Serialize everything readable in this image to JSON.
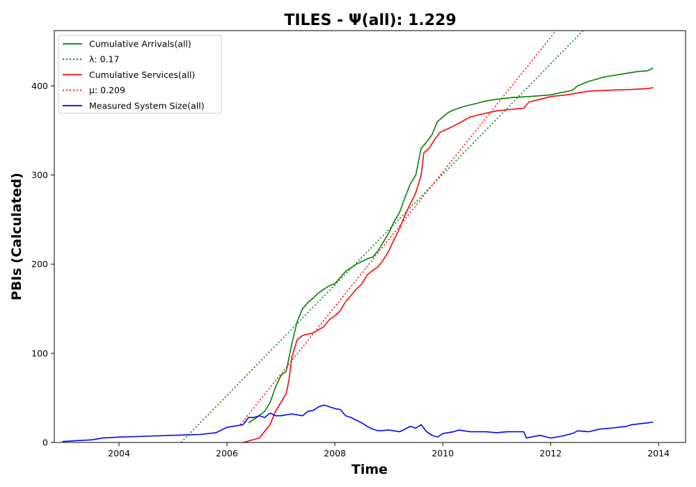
{
  "chart_data": {
    "type": "line",
    "title": "TILES -  Ψ(all): 1.229",
    "xlabel": "Time",
    "ylabel": "PBIs (Calculated)",
    "xlim": [
      2002.8,
      2014.5
    ],
    "ylim": [
      0,
      462
    ],
    "x_ticks": [
      2004,
      2006,
      2008,
      2010,
      2012,
      2014
    ],
    "y_ticks": [
      0,
      100,
      200,
      300,
      400
    ],
    "grid": false,
    "legend_position": "top-left",
    "series": [
      {
        "name": "Cumulative Arrivals(all)",
        "color": "#008000",
        "style": "solid",
        "points": [
          [
            2006.4,
            22
          ],
          [
            2006.55,
            28
          ],
          [
            2006.7,
            35
          ],
          [
            2006.8,
            45
          ],
          [
            2006.9,
            62
          ],
          [
            2007.0,
            75
          ],
          [
            2007.1,
            80
          ],
          [
            2007.2,
            110
          ],
          [
            2007.3,
            135
          ],
          [
            2007.4,
            150
          ],
          [
            2007.5,
            157
          ],
          [
            2007.6,
            162
          ],
          [
            2007.7,
            168
          ],
          [
            2007.8,
            172
          ],
          [
            2007.9,
            176
          ],
          [
            2008.0,
            178
          ],
          [
            2008.1,
            185
          ],
          [
            2008.2,
            192
          ],
          [
            2008.3,
            196
          ],
          [
            2008.4,
            200
          ],
          [
            2008.5,
            203
          ],
          [
            2008.6,
            206
          ],
          [
            2008.7,
            208
          ],
          [
            2008.8,
            215
          ],
          [
            2008.9,
            225
          ],
          [
            2009.0,
            235
          ],
          [
            2009.1,
            248
          ],
          [
            2009.2,
            258
          ],
          [
            2009.3,
            275
          ],
          [
            2009.4,
            290
          ],
          [
            2009.5,
            300
          ],
          [
            2009.6,
            330
          ],
          [
            2009.7,
            337
          ],
          [
            2009.8,
            345
          ],
          [
            2009.9,
            360
          ],
          [
            2010.0,
            365
          ],
          [
            2010.1,
            370
          ],
          [
            2010.2,
            373
          ],
          [
            2010.4,
            377
          ],
          [
            2010.6,
            380
          ],
          [
            2010.8,
            383
          ],
          [
            2011.0,
            385
          ],
          [
            2011.3,
            387
          ],
          [
            2011.6,
            388
          ],
          [
            2012.0,
            390
          ],
          [
            2012.4,
            395
          ],
          [
            2012.5,
            400
          ],
          [
            2012.7,
            405
          ],
          [
            2013.0,
            410
          ],
          [
            2013.3,
            413
          ],
          [
            2013.6,
            416
          ],
          [
            2013.8,
            417
          ],
          [
            2013.9,
            420
          ]
        ]
      },
      {
        "name": "λ: 0.17",
        "color": "#008000",
        "style": "dotted",
        "points": [
          [
            2005.15,
            0
          ],
          [
            2012.6,
            462
          ]
        ]
      },
      {
        "name": "Cumulative Services(all)",
        "color": "#ff0000",
        "style": "solid",
        "points": [
          [
            2006.3,
            0
          ],
          [
            2006.6,
            5
          ],
          [
            2006.8,
            20
          ],
          [
            2006.9,
            35
          ],
          [
            2007.0,
            45
          ],
          [
            2007.1,
            55
          ],
          [
            2007.15,
            70
          ],
          [
            2007.2,
            95
          ],
          [
            2007.3,
            115
          ],
          [
            2007.4,
            120
          ],
          [
            2007.6,
            123
          ],
          [
            2007.8,
            130
          ],
          [
            2007.9,
            138
          ],
          [
            2008.0,
            142
          ],
          [
            2008.1,
            148
          ],
          [
            2008.2,
            158
          ],
          [
            2008.3,
            165
          ],
          [
            2008.4,
            172
          ],
          [
            2008.5,
            178
          ],
          [
            2008.6,
            188
          ],
          [
            2008.7,
            193
          ],
          [
            2008.8,
            197
          ],
          [
            2008.9,
            205
          ],
          [
            2009.0,
            215
          ],
          [
            2009.1,
            228
          ],
          [
            2009.2,
            240
          ],
          [
            2009.3,
            255
          ],
          [
            2009.4,
            268
          ],
          [
            2009.5,
            280
          ],
          [
            2009.6,
            300
          ],
          [
            2009.65,
            325
          ],
          [
            2009.75,
            330
          ],
          [
            2009.85,
            340
          ],
          [
            2009.95,
            348
          ],
          [
            2010.1,
            352
          ],
          [
            2010.3,
            358
          ],
          [
            2010.5,
            365
          ],
          [
            2010.7,
            368
          ],
          [
            2011.0,
            372
          ],
          [
            2011.5,
            375
          ],
          [
            2011.6,
            382
          ],
          [
            2011.8,
            385
          ],
          [
            2012.0,
            388
          ],
          [
            2012.3,
            390
          ],
          [
            2012.5,
            392
          ],
          [
            2012.7,
            394
          ],
          [
            2013.0,
            395
          ],
          [
            2013.5,
            396
          ],
          [
            2013.8,
            397
          ],
          [
            2013.9,
            398
          ]
        ]
      },
      {
        "name": "μ: 0.209",
        "color": "#ff0000",
        "style": "dotted",
        "points": [
          [
            2006.25,
            20
          ],
          [
            2012.1,
            462
          ]
        ]
      },
      {
        "name": "Measured System Size(all)",
        "color": "#0000ff",
        "style": "solid",
        "points": [
          [
            2002.95,
            1
          ],
          [
            2003.2,
            2
          ],
          [
            2003.5,
            3
          ],
          [
            2003.7,
            5
          ],
          [
            2004.0,
            6
          ],
          [
            2004.5,
            7
          ],
          [
            2005.0,
            8
          ],
          [
            2005.5,
            9
          ],
          [
            2005.8,
            11
          ],
          [
            2006.0,
            17
          ],
          [
            2006.3,
            20
          ],
          [
            2006.4,
            28
          ],
          [
            2006.5,
            28
          ],
          [
            2006.6,
            30
          ],
          [
            2006.7,
            28
          ],
          [
            2006.8,
            33
          ],
          [
            2006.9,
            30
          ],
          [
            2007.0,
            30
          ],
          [
            2007.2,
            32
          ],
          [
            2007.4,
            30
          ],
          [
            2007.5,
            35
          ],
          [
            2007.6,
            36
          ],
          [
            2007.7,
            40
          ],
          [
            2007.8,
            42
          ],
          [
            2007.9,
            40
          ],
          [
            2008.0,
            38
          ],
          [
            2008.1,
            37
          ],
          [
            2008.2,
            30
          ],
          [
            2008.3,
            28
          ],
          [
            2008.4,
            25
          ],
          [
            2008.5,
            22
          ],
          [
            2008.6,
            18
          ],
          [
            2008.7,
            15
          ],
          [
            2008.8,
            13
          ],
          [
            2009.0,
            14
          ],
          [
            2009.2,
            12
          ],
          [
            2009.4,
            18
          ],
          [
            2009.5,
            16
          ],
          [
            2009.6,
            20
          ],
          [
            2009.7,
            12
          ],
          [
            2009.8,
            8
          ],
          [
            2009.9,
            6
          ],
          [
            2010.0,
            10
          ],
          [
            2010.2,
            12
          ],
          [
            2010.3,
            14
          ],
          [
            2010.5,
            12
          ],
          [
            2010.8,
            12
          ],
          [
            2011.0,
            11
          ],
          [
            2011.2,
            12
          ],
          [
            2011.5,
            12
          ],
          [
            2011.55,
            5
          ],
          [
            2011.8,
            8
          ],
          [
            2012.0,
            5
          ],
          [
            2012.2,
            7
          ],
          [
            2012.4,
            10
          ],
          [
            2012.5,
            13
          ],
          [
            2012.7,
            12
          ],
          [
            2012.9,
            15
          ],
          [
            2013.1,
            16
          ],
          [
            2013.4,
            18
          ],
          [
            2013.5,
            20
          ],
          [
            2013.8,
            22
          ],
          [
            2013.9,
            23
          ]
        ]
      }
    ]
  }
}
